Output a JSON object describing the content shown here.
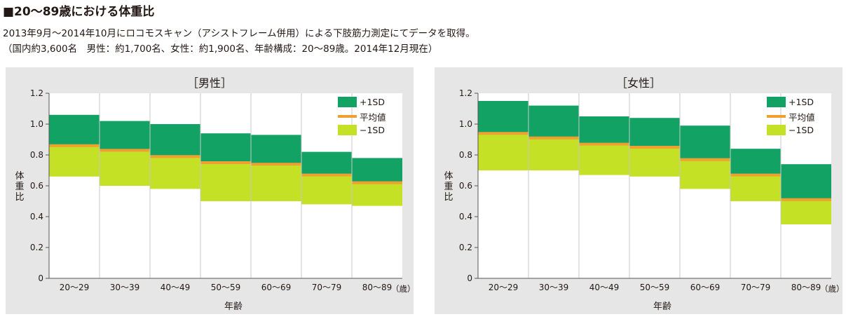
{
  "title": "■20～89歳における体重比",
  "description": [
    "2013年9月～2014年10月にロコモスキャン（アシストフレーム併用）による下肢筋力測定にてデータを取得。",
    "（国内約3,600名　男性：約1,700名、女性：約1,900名、年齢構成：20～89歳。2014年12月現在）"
  ],
  "legend": {
    "plus": "+1SD",
    "mean": "平均値",
    "minus": "−1SD"
  },
  "colors": {
    "plus_band": "#12a263",
    "mean_line": "#f0a030",
    "minus_band": "#c4e126",
    "panel_bg": "#e6e6e6",
    "plot_bg": "#ffffff"
  },
  "chart_data": [
    {
      "type": "bar",
      "title": "［男性］",
      "xlabel": "年齢",
      "x_unit": "（歳）",
      "ylabel": "体重比",
      "ylim": [
        0,
        1.2
      ],
      "yticks": [
        "0",
        "0.2",
        "0.4",
        "0.6",
        "0.8",
        "1.0",
        "1.2"
      ],
      "categories": [
        "20～29",
        "30～39",
        "40～49",
        "50～59",
        "60～69",
        "70～79",
        "80～89"
      ],
      "series": [
        {
          "name": "+1SD",
          "values": [
            1.06,
            1.02,
            1.0,
            0.94,
            0.93,
            0.82,
            0.78
          ]
        },
        {
          "name": "平均値",
          "values": [
            0.86,
            0.83,
            0.79,
            0.75,
            0.74,
            0.67,
            0.62
          ]
        },
        {
          "name": "−1SD",
          "values": [
            0.66,
            0.6,
            0.58,
            0.5,
            0.5,
            0.48,
            0.47
          ]
        }
      ],
      "grid": true,
      "legend_position": "top-right"
    },
    {
      "type": "bar",
      "title": "［女性］",
      "xlabel": "年齢",
      "x_unit": "（歳）",
      "ylabel": "体重比",
      "ylim": [
        0,
        1.2
      ],
      "yticks": [
        "0",
        "0.2",
        "0.4",
        "0.6",
        "0.8",
        "1.0",
        "1.2"
      ],
      "categories": [
        "20～29",
        "30～39",
        "40～49",
        "50～59",
        "60～69",
        "70～79",
        "80～89"
      ],
      "series": [
        {
          "name": "+1SD",
          "values": [
            1.15,
            1.12,
            1.05,
            1.04,
            0.99,
            0.84,
            0.74
          ]
        },
        {
          "name": "平均値",
          "values": [
            0.94,
            0.91,
            0.87,
            0.85,
            0.77,
            0.67,
            0.51
          ]
        },
        {
          "name": "−1SD",
          "values": [
            0.7,
            0.7,
            0.67,
            0.66,
            0.58,
            0.5,
            0.35
          ]
        }
      ],
      "grid": true,
      "legend_position": "top-right"
    }
  ]
}
